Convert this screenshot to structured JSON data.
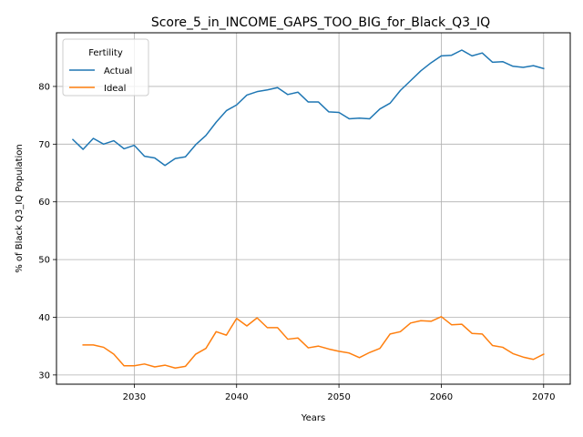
{
  "chart_data": {
    "type": "line",
    "title": "Score_5_in_INCOME_GAPS_TOO_BIG_for_Black_Q3_IQ",
    "xlabel": "Years",
    "ylabel": "% of Black Q3_IQ Population",
    "xlim": [
      2022.4,
      2072.6
    ],
    "ylim": [
      28.4,
      89.3
    ],
    "xticks": [
      2030,
      2040,
      2050,
      2060,
      2070
    ],
    "yticks": [
      30,
      40,
      50,
      60,
      70,
      80
    ],
    "grid": true,
    "legend": {
      "title": "Fertility",
      "placement": "top-left"
    },
    "series": [
      {
        "name": "Actual",
        "color": "#1f77b4",
        "x": [
          2024,
          2025,
          2026,
          2027,
          2028,
          2029,
          2030,
          2031,
          2032,
          2033,
          2034,
          2035,
          2036,
          2037,
          2038,
          2039,
          2040,
          2041,
          2042,
          2043,
          2044,
          2045,
          2046,
          2047,
          2048,
          2049,
          2050,
          2051,
          2052,
          2053,
          2054,
          2055,
          2056,
          2057,
          2058,
          2059,
          2060,
          2061,
          2062,
          2063,
          2064,
          2065,
          2066,
          2067,
          2068,
          2069,
          2070
        ],
        "values": [
          70.8,
          69.1,
          71.0,
          70.0,
          70.6,
          69.2,
          69.8,
          67.9,
          67.6,
          66.3,
          67.5,
          67.8,
          69.9,
          71.5,
          73.8,
          75.8,
          76.8,
          78.5,
          79.1,
          79.4,
          79.8,
          78.6,
          79.0,
          77.3,
          77.3,
          75.6,
          75.5,
          74.4,
          74.5,
          74.4,
          76.1,
          77.1,
          79.3,
          81.0,
          82.7,
          84.1,
          85.3,
          85.4,
          86.3,
          85.3,
          85.8,
          84.2,
          84.3,
          83.5,
          83.3,
          83.6,
          83.1
        ]
      },
      {
        "name": "Ideal",
        "color": "#ff7f0e",
        "x": [
          2025,
          2026,
          2027,
          2028,
          2029,
          2030,
          2031,
          2032,
          2033,
          2034,
          2035,
          2036,
          2037,
          2038,
          2039,
          2040,
          2041,
          2042,
          2043,
          2044,
          2045,
          2046,
          2047,
          2048,
          2049,
          2050,
          2051,
          2052,
          2053,
          2054,
          2055,
          2056,
          2057,
          2058,
          2059,
          2060,
          2061,
          2062,
          2063,
          2064,
          2065,
          2066,
          2067,
          2068,
          2069,
          2070
        ],
        "values": [
          35.2,
          35.2,
          34.8,
          33.6,
          31.6,
          31.6,
          31.9,
          31.4,
          31.7,
          31.2,
          31.5,
          33.6,
          34.6,
          37.5,
          36.9,
          39.8,
          38.5,
          39.9,
          38.2,
          38.2,
          36.2,
          36.4,
          34.7,
          35.0,
          34.5,
          34.1,
          33.8,
          33.0,
          33.9,
          34.6,
          37.1,
          37.5,
          39.0,
          39.4,
          39.3,
          40.1,
          38.7,
          38.8,
          37.2,
          37.1,
          35.1,
          34.8,
          33.7,
          33.1,
          32.7,
          33.6
        ]
      }
    ]
  }
}
